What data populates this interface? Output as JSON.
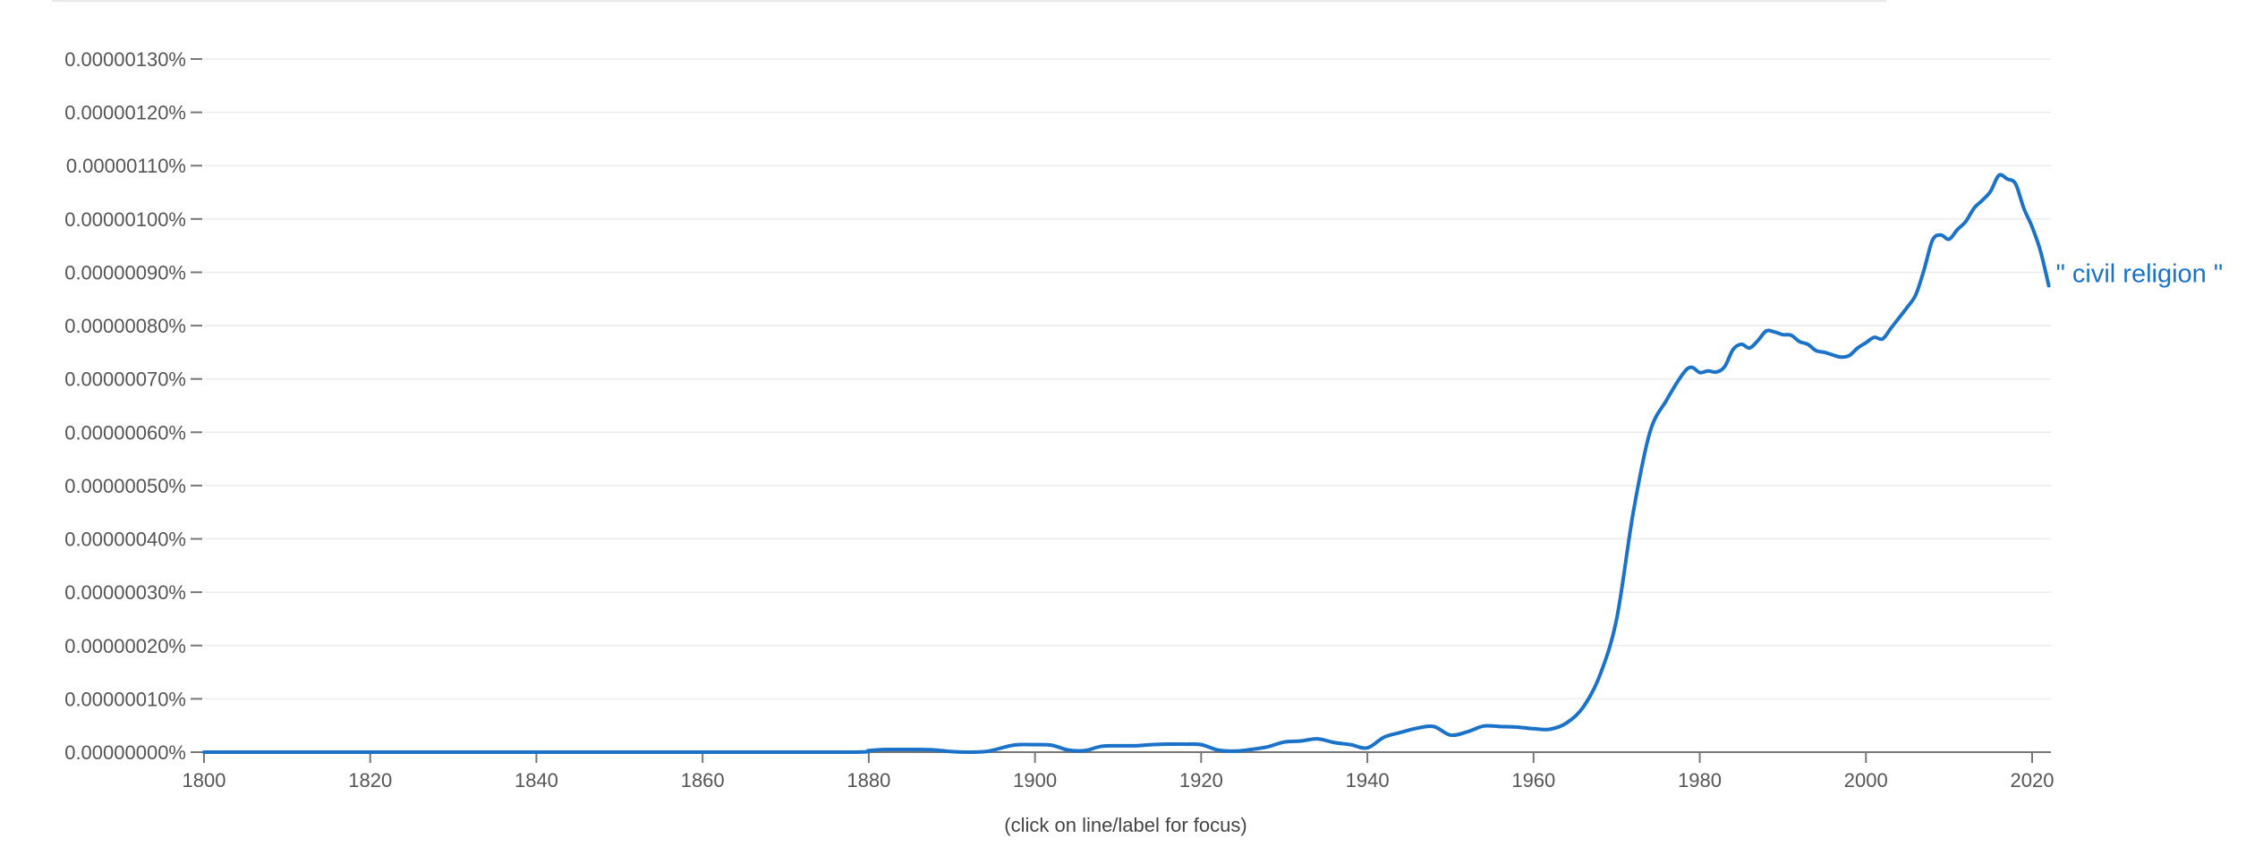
{
  "colors": {
    "series": "#1a73c8",
    "grid": "#ebebeb",
    "axis": "#777777",
    "tick_text": "#555555"
  },
  "footnote": "(click on line/label for focus)",
  "chart_data": {
    "type": "line",
    "title": "",
    "xlabel": "",
    "ylabel": "",
    "xlim": [
      1800,
      2022
    ],
    "ylim": [
      0,
      1.3e-06
    ],
    "grid": true,
    "legend": "end-of-line label",
    "x_ticks": [
      1800,
      1820,
      1840,
      1860,
      1880,
      1900,
      1920,
      1940,
      1960,
      1980,
      2000,
      2020
    ],
    "x_tick_labels": [
      "1800",
      "1820",
      "1840",
      "1860",
      "1880",
      "1900",
      "1920",
      "1940",
      "1960",
      "1980",
      "2000",
      "2020"
    ],
    "y_ticks": [
      0,
      1e-07,
      2e-07,
      3e-07,
      4e-07,
      5e-07,
      6e-07,
      7e-07,
      8e-07,
      9e-07,
      1e-06,
      1.1e-06,
      1.2e-06,
      1.3e-06
    ],
    "y_tick_labels": [
      "0.00000000%",
      "0.00000010%",
      "0.00000020%",
      "0.00000030%",
      "0.00000040%",
      "0.00000050%",
      "0.00000060%",
      "0.00000070%",
      "0.00000080%",
      "0.00000090%",
      "0.00000100%",
      "0.00000110%",
      "0.00000120%",
      "0.00000130%"
    ],
    "series": [
      {
        "name": "\" civil religion \"",
        "color": "#1a73c8",
        "x": [
          1800,
          1820,
          1840,
          1860,
          1878,
          1880,
          1882,
          1884,
          1886,
          1888,
          1890,
          1892,
          1894,
          1895,
          1896,
          1897,
          1898,
          1900,
          1902,
          1904,
          1906,
          1908,
          1910,
          1912,
          1914,
          1916,
          1918,
          1920,
          1922,
          1924,
          1926,
          1928,
          1930,
          1932,
          1934,
          1936,
          1938,
          1940,
          1942,
          1944,
          1946,
          1948,
          1950,
          1952,
          1954,
          1956,
          1958,
          1960,
          1962,
          1964,
          1966,
          1968,
          1970,
          1972,
          1974,
          1976,
          1978,
          1979,
          1980,
          1981,
          1982,
          1983,
          1984,
          1985,
          1986,
          1987,
          1988,
          1989,
          1990,
          1991,
          1992,
          1993,
          1994,
          1995,
          1996,
          1997,
          1998,
          1999,
          2000,
          2001,
          2002,
          2003,
          2004,
          2005,
          2006,
          2007,
          2008,
          2009,
          2010,
          2011,
          2012,
          2013,
          2014,
          2015,
          2016,
          2017,
          2018,
          2019,
          2020,
          2021,
          2022
        ],
        "values": [
          0,
          0,
          0,
          0,
          0,
          3e-09,
          5e-09,
          5e-09,
          5e-09,
          4e-09,
          1e-09,
          0,
          1e-09,
          4e-09,
          8e-09,
          1.2e-08,
          1.4e-08,
          1.4e-08,
          1.3e-08,
          4e-09,
          3e-09,
          1.1e-08,
          1.2e-08,
          1.2e-08,
          1.4e-08,
          1.5e-08,
          1.5e-08,
          1.4e-08,
          4e-09,
          2e-09,
          5e-09,
          1e-08,
          1.9e-08,
          2.1e-08,
          2.5e-08,
          1.8e-08,
          1.4e-08,
          8e-09,
          2.8e-08,
          3.7e-08,
          4.5e-08,
          4.8e-08,
          3.2e-08,
          3.8e-08,
          4.9e-08,
          4.8e-08,
          4.7e-08,
          4.4e-08,
          4.3e-08,
          5.5e-08,
          8.5e-08,
          1.45e-07,
          2.5e-07,
          4.5e-07,
          6e-07,
          6.6e-07,
          7.1e-07,
          7.22e-07,
          7.12e-07,
          7.15e-07,
          7.13e-07,
          7.23e-07,
          7.55e-07,
          7.65e-07,
          7.58e-07,
          7.72e-07,
          7.9e-07,
          7.88e-07,
          7.83e-07,
          7.82e-07,
          7.7e-07,
          7.65e-07,
          7.53e-07,
          7.5e-07,
          7.45e-07,
          7.41e-07,
          7.44e-07,
          7.58e-07,
          7.68e-07,
          7.78e-07,
          7.75e-07,
          7.95e-07,
          8.15e-07,
          8.35e-07,
          8.58e-07,
          9.05e-07,
          9.6e-07,
          9.7e-07,
          9.62e-07,
          9.8e-07,
          9.95e-07,
          1.02e-06,
          1.035e-06,
          1.052e-06,
          1.082e-06,
          1.075e-06,
          1.066e-06,
          1.02e-06,
          9.85e-07,
          9.4e-07,
          8.75e-07
        ]
      }
    ]
  }
}
